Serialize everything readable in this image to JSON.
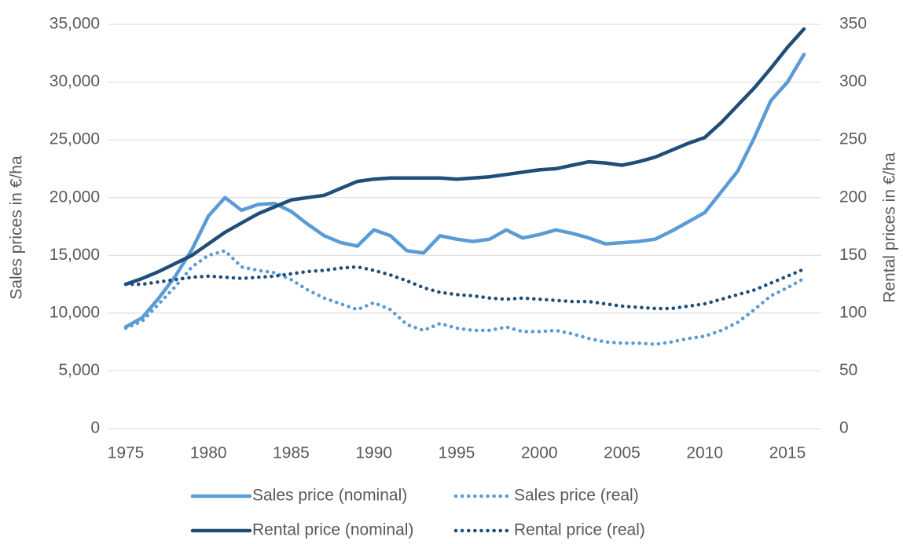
{
  "chart_data": {
    "type": "line",
    "y_label": "Sales prices in €/ha",
    "y2_label": "Rental prices in €/ha",
    "x": [
      1975,
      1976,
      1977,
      1978,
      1979,
      1980,
      1981,
      1982,
      1983,
      1984,
      1985,
      1986,
      1987,
      1988,
      1989,
      1990,
      1991,
      1992,
      1993,
      1994,
      1995,
      1996,
      1997,
      1998,
      1999,
      2000,
      2001,
      2002,
      2003,
      2004,
      2005,
      2006,
      2007,
      2008,
      2009,
      2010,
      2011,
      2012,
      2013,
      2014,
      2015,
      2016
    ],
    "xlim": [
      1975,
      2016
    ],
    "xticks": [
      1975,
      1980,
      1985,
      1990,
      1995,
      2000,
      2005,
      2010,
      2015
    ],
    "ylim": [
      0,
      35000
    ],
    "yticks": [
      0,
      {
        "value": 5000,
        "label": "5,000"
      },
      {
        "value": 10000,
        "label": "10,000"
      },
      {
        "value": 15000,
        "label": "15,000"
      },
      {
        "value": 20000,
        "label": "20,000"
      },
      {
        "value": 25000,
        "label": "25,000"
      },
      {
        "value": 30000,
        "label": "30,000"
      },
      {
        "value": 35000,
        "label": "35,000"
      }
    ],
    "y2lim": [
      0,
      350
    ],
    "y2ticks": [
      0,
      50,
      100,
      150,
      200,
      250,
      300,
      350
    ],
    "grid": true,
    "legend": "bottom",
    "series": [
      {
        "name": "Sales price (nominal)",
        "color": "#5b9bd5",
        "line_style": "solid",
        "values": [
          8800,
          9600,
          11300,
          13200,
          15500,
          18400,
          20000,
          18900,
          19400,
          19500,
          18800,
          17700,
          16700,
          16100,
          15800,
          17200,
          16700,
          15400,
          15200,
          16700,
          16400,
          16200,
          16400,
          17200,
          16500,
          16800,
          17200,
          16900,
          16500,
          16000,
          16100,
          16200,
          16400,
          17100,
          17900,
          18700,
          20500,
          22300,
          25200,
          28400,
          30000,
          32400
        ]
      },
      {
        "name": "Sales price (real)",
        "color": "#5b9bd5",
        "line_style": "dotted",
        "values": [
          8700,
          9300,
          10800,
          12300,
          14000,
          15000,
          15400,
          14000,
          13700,
          13500,
          12900,
          12000,
          11300,
          10800,
          10300,
          10900,
          10300,
          9000,
          8500,
          9100,
          8700,
          8500,
          8500,
          8800,
          8400,
          8400,
          8500,
          8200,
          7800,
          7500,
          7400,
          7400,
          7300,
          7500,
          7800,
          8000,
          8500,
          9200,
          10300,
          11500,
          12200,
          13000
        ]
      },
      {
        "name": "Rental price (nominal)",
        "color": "#1f4e79",
        "line_style": "solid",
        "axis": "y2",
        "values": [
          125,
          130,
          136,
          143,
          150,
          160,
          170,
          178,
          186,
          192,
          198,
          200,
          202,
          208,
          214,
          216,
          217,
          217,
          217,
          217,
          216,
          217,
          218,
          220,
          222,
          224,
          225,
          228,
          231,
          230,
          228,
          231,
          235,
          241,
          247,
          252,
          265,
          280,
          295,
          312,
          330,
          346
        ]
      },
      {
        "name": "Rental price (real)",
        "color": "#1f4e79",
        "line_style": "dotted",
        "axis": "y2",
        "values": [
          125,
          125,
          127,
          129,
          131,
          132,
          131,
          130,
          131,
          132,
          134,
          136,
          137,
          139,
          140,
          137,
          133,
          128,
          122,
          118,
          116,
          115,
          113,
          112,
          113,
          112,
          111,
          110,
          110,
          108,
          106,
          105,
          104,
          104,
          106,
          108,
          112,
          116,
          120,
          126,
          132,
          138
        ]
      }
    ]
  }
}
